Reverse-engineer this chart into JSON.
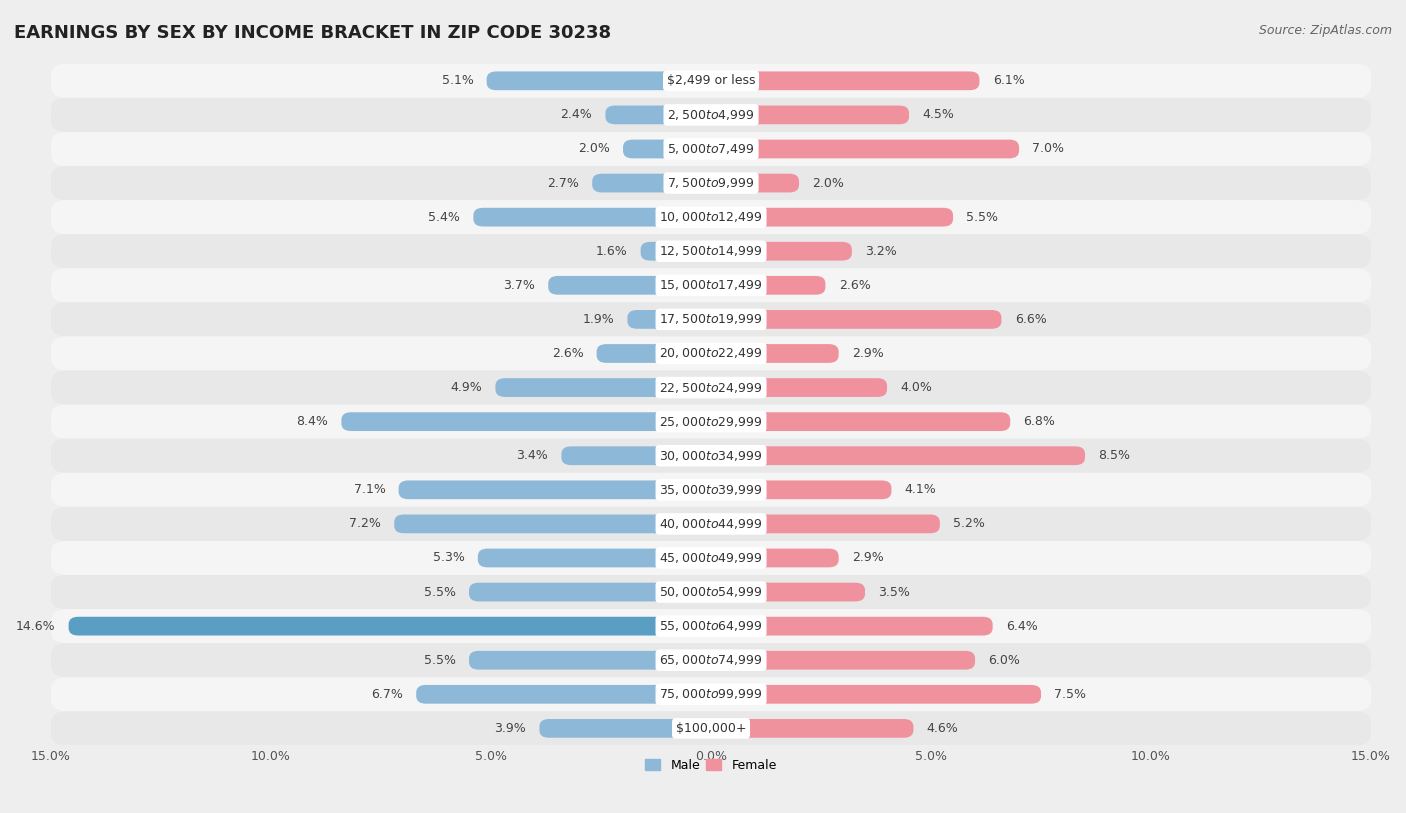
{
  "title": "EARNINGS BY SEX BY INCOME BRACKET IN ZIP CODE 30238",
  "source": "Source: ZipAtlas.com",
  "categories": [
    "$2,499 or less",
    "$2,500 to $4,999",
    "$5,000 to $7,499",
    "$7,500 to $9,999",
    "$10,000 to $12,499",
    "$12,500 to $14,999",
    "$15,000 to $17,499",
    "$17,500 to $19,999",
    "$20,000 to $22,499",
    "$22,500 to $24,999",
    "$25,000 to $29,999",
    "$30,000 to $34,999",
    "$35,000 to $39,999",
    "$40,000 to $44,999",
    "$45,000 to $49,999",
    "$50,000 to $54,999",
    "$55,000 to $64,999",
    "$65,000 to $74,999",
    "$75,000 to $99,999",
    "$100,000+"
  ],
  "male_values": [
    5.1,
    2.4,
    2.0,
    2.7,
    5.4,
    1.6,
    3.7,
    1.9,
    2.6,
    4.9,
    8.4,
    3.4,
    7.1,
    7.2,
    5.3,
    5.5,
    14.6,
    5.5,
    6.7,
    3.9
  ],
  "female_values": [
    6.1,
    4.5,
    7.0,
    2.0,
    5.5,
    3.2,
    2.6,
    6.6,
    2.9,
    4.0,
    6.8,
    8.5,
    4.1,
    5.2,
    2.9,
    3.5,
    6.4,
    6.0,
    7.5,
    4.6
  ],
  "male_color": "#8db8d8",
  "female_color": "#f0919e",
  "male_highlight_color": "#5a9ec4",
  "row_color_even": "#f5f5f5",
  "row_color_odd": "#e8e8e8",
  "background_color": "#eeeeee",
  "xlim": 15.0,
  "bar_height": 0.55,
  "title_fontsize": 13,
  "label_fontsize": 9,
  "tick_fontsize": 9,
  "source_fontsize": 9,
  "value_fontsize": 9
}
